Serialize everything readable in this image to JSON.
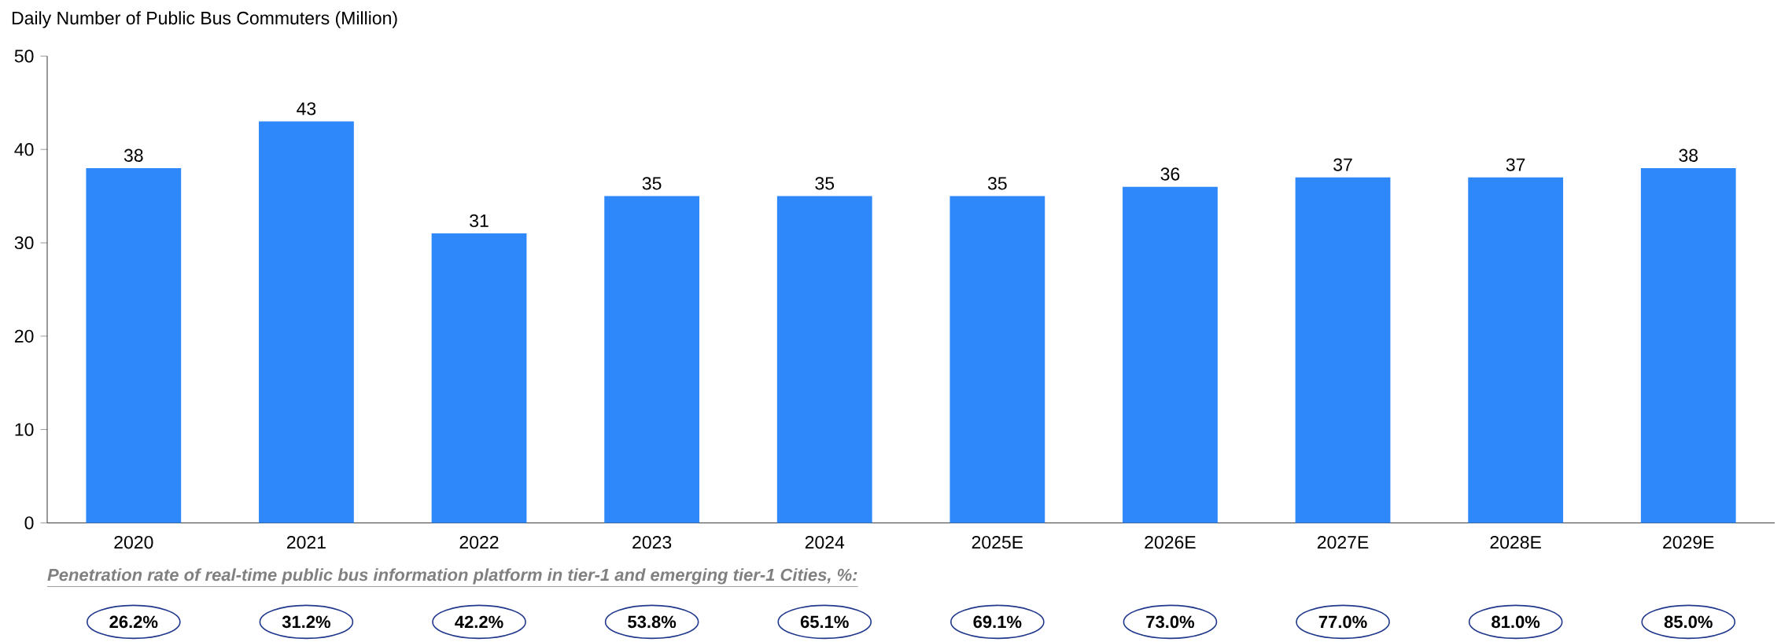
{
  "chart_data": {
    "type": "bar",
    "title": "Daily Number of Public Bus Commuters (Million)",
    "categories": [
      "2020",
      "2021",
      "2022",
      "2023",
      "2024",
      "2025E",
      "2026E",
      "2027E",
      "2028E",
      "2029E"
    ],
    "values": [
      38,
      43,
      31,
      35,
      35,
      35,
      36,
      37,
      37,
      38
    ],
    "color": "#2e88fa",
    "data_labels": true,
    "ylim": [
      0,
      50
    ],
    "yticks": [
      0,
      10,
      20,
      30,
      40,
      50
    ],
    "grid": false,
    "annotations": [
      "Penetration rate of real-time public bus information platform in tier-1 and emerging tier-1 Cities, %:",
      "26.2%",
      "31.2%",
      "42.2%",
      "53.8%",
      "65.1%",
      "69.1%",
      "73.0%",
      "77.0%",
      "81.0%",
      "85.0%"
    ]
  }
}
